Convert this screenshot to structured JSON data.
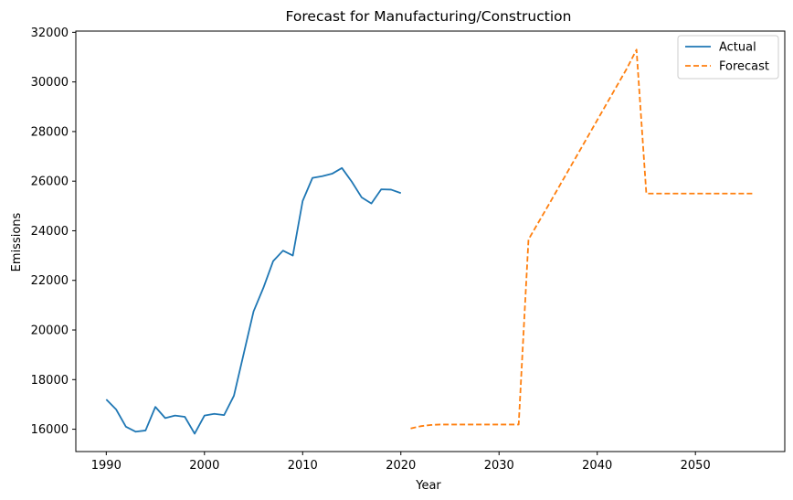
{
  "chart_data": {
    "type": "line",
    "title": "Forecast for Manufacturing/Construction",
    "xlabel": "Year",
    "ylabel": "Emissions",
    "xlim": [
      1986.9,
      2059.1
    ],
    "ylim": [
      15100,
      32050
    ],
    "xticks": [
      1990,
      2000,
      2010,
      2020,
      2030,
      2040,
      2050
    ],
    "yticks": [
      16000,
      18000,
      20000,
      22000,
      24000,
      26000,
      28000,
      30000,
      32000
    ],
    "grid": false,
    "legend_position": "top-right",
    "series": [
      {
        "name": "Actual",
        "color": "#1f77b4",
        "style": "solid",
        "x": [
          1990,
          1991,
          1992,
          1993,
          1994,
          1995,
          1996,
          1997,
          1998,
          1999,
          2000,
          2001,
          2002,
          2003,
          2004,
          2005,
          2006,
          2007,
          2008,
          2009,
          2010,
          2011,
          2012,
          2013,
          2014,
          2015,
          2016,
          2017,
          2018,
          2019,
          2020
        ],
        "y": [
          17200,
          16800,
          16100,
          15900,
          15950,
          16900,
          16450,
          16550,
          16500,
          15820,
          16550,
          16620,
          16570,
          17350,
          19050,
          20750,
          21700,
          22780,
          23200,
          23000,
          25200,
          26130,
          26200,
          26300,
          26530,
          25980,
          25350,
          25100,
          25670,
          25660,
          25520
        ]
      },
      {
        "name": "Forecast",
        "color": "#ff7f0e",
        "style": "dashed",
        "x": [
          2021,
          2022,
          2023,
          2024,
          2025,
          2026,
          2027,
          2028,
          2029,
          2030,
          2031,
          2032,
          2033,
          2034,
          2035,
          2036,
          2037,
          2038,
          2039,
          2040,
          2041,
          2042,
          2043,
          2044,
          2045,
          2046,
          2047,
          2048,
          2049,
          2050,
          2051,
          2052,
          2053,
          2054,
          2055,
          2056
        ],
        "y": [
          16030,
          16120,
          16170,
          16190,
          16190,
          16190,
          16190,
          16190,
          16190,
          16190,
          16190,
          16190,
          23650,
          24330,
          25010,
          25700,
          26390,
          27080,
          27770,
          28460,
          29150,
          29840,
          30530,
          31300,
          25500,
          25500,
          25500,
          25500,
          25500,
          25500,
          25500,
          25500,
          25500,
          25500,
          25500,
          25500
        ]
      }
    ]
  }
}
